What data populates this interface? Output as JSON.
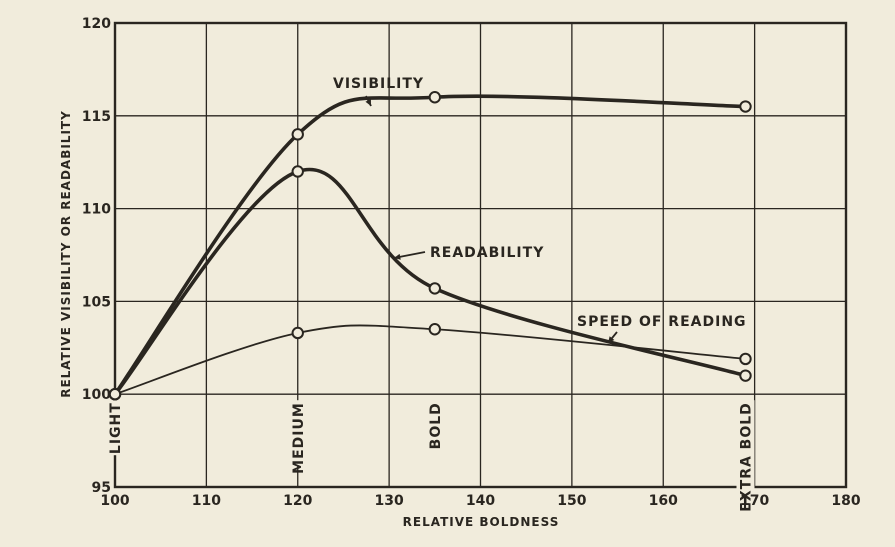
{
  "chart_data": {
    "type": "line",
    "xlabel": "RELATIVE BOLDNESS",
    "ylabel": "RELATIVE VISIBILITY OR READABILITY",
    "xlim": [
      100,
      180
    ],
    "ylim": [
      95,
      120
    ],
    "x_ticks": [
      "100",
      "110",
      "120",
      "130",
      "140",
      "150",
      "160",
      "170",
      "180"
    ],
    "y_ticks": [
      "95",
      "100",
      "105",
      "110",
      "115",
      "120"
    ],
    "grid": true,
    "weight_labels": [
      {
        "x": 100,
        "label": "LIGHT"
      },
      {
        "x": 120,
        "label": "MEDIUM"
      },
      {
        "x": 135,
        "label": "BOLD"
      },
      {
        "x": 169,
        "label": "EXTRA BOLD"
      }
    ],
    "series": [
      {
        "name": "VISIBILITY",
        "stroke": "heavy",
        "points": [
          [
            100,
            100
          ],
          [
            120,
            114
          ],
          [
            135,
            116
          ],
          [
            169,
            115.5
          ]
        ]
      },
      {
        "name": "READABILITY",
        "stroke": "heavy",
        "points": [
          [
            100,
            100
          ],
          [
            120,
            112
          ],
          [
            135,
            105.7
          ],
          [
            169,
            101
          ]
        ]
      },
      {
        "name": "SPEED OF READING",
        "stroke": "light",
        "points": [
          [
            100,
            100
          ],
          [
            120,
            103.3
          ],
          [
            135,
            103.5
          ],
          [
            169,
            101.9
          ]
        ]
      }
    ]
  },
  "colors": {
    "ink": "#2a2620",
    "paper": "#f1ecdc"
  }
}
